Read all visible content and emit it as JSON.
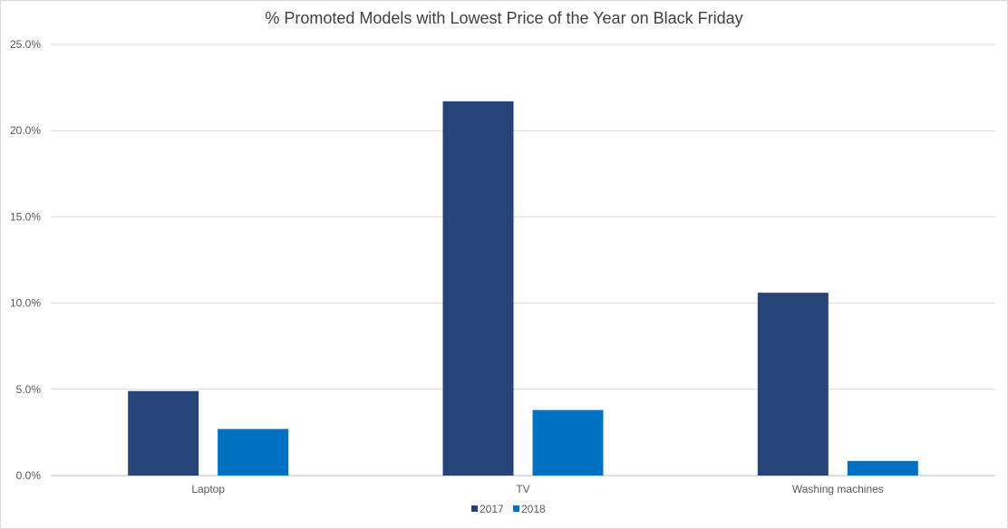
{
  "chart_data": {
    "type": "bar",
    "title": "% Promoted Models with Lowest Price of the Year on Black Friday",
    "categories": [
      "Laptop",
      "TV",
      "Washing machines"
    ],
    "series": [
      {
        "name": "2017",
        "values": [
          4.9,
          21.7,
          10.6
        ],
        "color": "#264478"
      },
      {
        "name": "2018",
        "values": [
          2.7,
          3.8,
          0.85
        ],
        "color": "#0070c0"
      }
    ],
    "ylim": [
      0,
      25
    ],
    "yticks": [
      "0.0%",
      "5.0%",
      "10.0%",
      "15.0%",
      "20.0%",
      "25.0%"
    ],
    "ytick_values": [
      0,
      5,
      10,
      15,
      20,
      25
    ],
    "grid": true,
    "legend_position": "bottom"
  }
}
